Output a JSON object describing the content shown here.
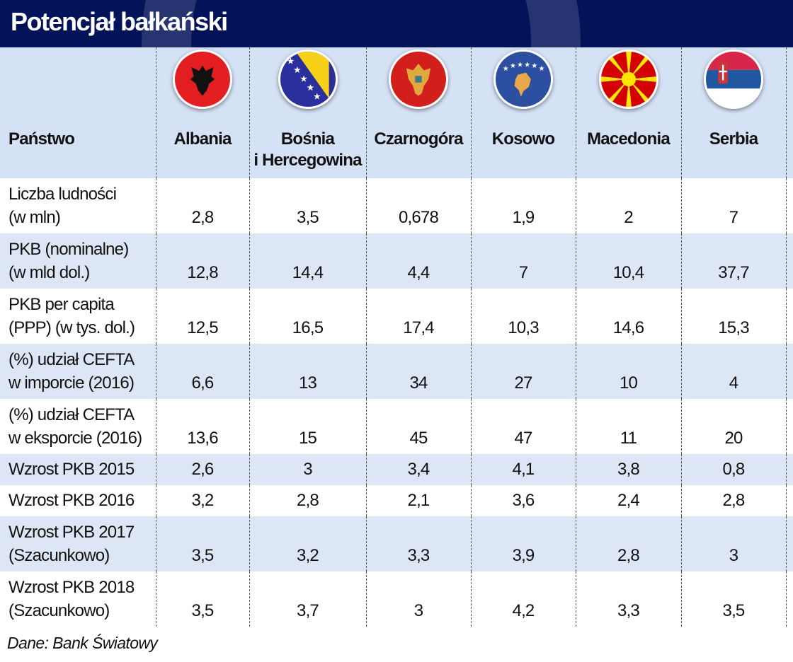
{
  "title": "Potencjał bałkański",
  "header": {
    "label": "Państwo",
    "countries": [
      {
        "name": "Albania",
        "flag": "albania-flag"
      },
      {
        "name": "Bośnia\ni Hercegowina",
        "flag": "bosnia-flag"
      },
      {
        "name": "Czarnogóra",
        "flag": "montenegro-flag"
      },
      {
        "name": "Kosowo",
        "flag": "kosovo-flag"
      },
      {
        "name": "Macedonia",
        "flag": "macedonia-flag"
      },
      {
        "name": "Serbia",
        "flag": "serbia-flag"
      }
    ]
  },
  "rows": [
    {
      "label": "Liczba ludności\n(w mln)",
      "values": [
        "2,8",
        "3,5",
        "0,678",
        "1,9",
        "2",
        "7"
      ]
    },
    {
      "label": "PKB (nominalne)\n(w mld dol.)",
      "values": [
        "12,8",
        "14,4",
        "4,4",
        "7",
        "10,4",
        "37,7"
      ]
    },
    {
      "label": "PKB per capita\n(PPP) (w tys. dol.)",
      "values": [
        "12,5",
        "16,5",
        "17,4",
        "10,3",
        "14,6",
        "15,3"
      ]
    },
    {
      "label": "(%) udział CEFTA\nw imporcie (2016)",
      "values": [
        "6,6",
        "13",
        "34",
        "27",
        "10",
        "4"
      ]
    },
    {
      "label": "(%) udział CEFTA\nw eksporcie (2016)",
      "values": [
        "13,6",
        "15",
        "45",
        "47",
        "11",
        "20"
      ]
    },
    {
      "label": "Wzrost PKB 2015",
      "values": [
        "2,6",
        "3",
        "3,4",
        "4,1",
        "3,8",
        "0,8"
      ]
    },
    {
      "label": "Wzrost PKB 2016",
      "values": [
        "3,2",
        "2,8",
        "2,1",
        "3,6",
        "2,4",
        "2,8"
      ]
    },
    {
      "label": "Wzrost PKB 2017\n(Szacunkowo)",
      "values": [
        "3,5",
        "3,2",
        "3,3",
        "3,9",
        "2,8",
        "3"
      ]
    },
    {
      "label": "Wzrost PKB 2018\n(Szacunkowo)",
      "values": [
        "3,5",
        "3,7",
        "3",
        "4,2",
        "3,3",
        "3,5"
      ]
    }
  ],
  "source": "Dane: Bank Światowy",
  "colors": {
    "title_bg": "#03135a",
    "header_bg": "#d5e1f5",
    "alt_row_bg": "#dde6f5"
  }
}
